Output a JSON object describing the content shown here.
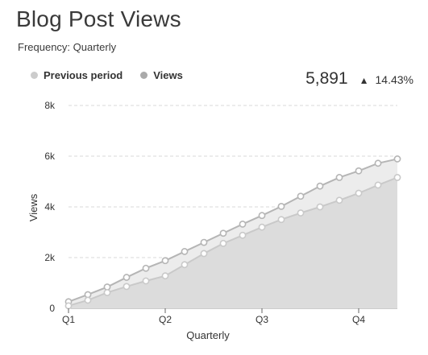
{
  "header": {
    "title": "Blog Post Views",
    "subtitle": "Frequency: Quarterly"
  },
  "kpi": {
    "value": "5,891",
    "arrow": "▲",
    "change": "14.43%"
  },
  "colors": {
    "views_line": "#b5b5b5",
    "views_fill": "#ececec",
    "previous_line": "#c9c9c9",
    "previous_fill": "#dcdcdc",
    "grid": "#d8d8d8",
    "legend_previous": "#cccccc",
    "legend_views": "#aaaaaa"
  },
  "chart_data": {
    "type": "area",
    "xlabel": "Quarterly",
    "ylabel": "Views",
    "ylim": [
      0,
      8000
    ],
    "yticks": [
      0,
      2000,
      4000,
      6000,
      8000
    ],
    "ytick_labels": [
      "0",
      "2k",
      "4k",
      "6k",
      "8k"
    ],
    "xlim": [
      0,
      17
    ],
    "xtick_positions": [
      0,
      5,
      10,
      15
    ],
    "xtick_labels": [
      "Q1",
      "Q2",
      "Q3",
      "Q4"
    ],
    "grid": true,
    "legend_position": "top-left",
    "series": [
      {
        "name": "Previous period",
        "color_key": "previous",
        "x": [
          0,
          1,
          2,
          3,
          4,
          5,
          6,
          7,
          8,
          9,
          10,
          11,
          12,
          13,
          14,
          15,
          16,
          17
        ],
        "values": [
          100,
          320,
          620,
          860,
          1080,
          1280,
          1720,
          2160,
          2560,
          2880,
          3200,
          3500,
          3760,
          4000,
          4260,
          4540,
          4860,
          5160
        ]
      },
      {
        "name": "Views",
        "color_key": "views",
        "x": [
          0,
          1,
          2,
          3,
          4,
          5,
          6,
          7,
          8,
          9,
          10,
          11,
          12,
          13,
          14,
          15,
          16,
          17
        ],
        "values": [
          260,
          540,
          840,
          1220,
          1580,
          1880,
          2240,
          2600,
          2960,
          3320,
          3660,
          4020,
          4420,
          4820,
          5160,
          5420,
          5720,
          5891
        ]
      }
    ]
  }
}
